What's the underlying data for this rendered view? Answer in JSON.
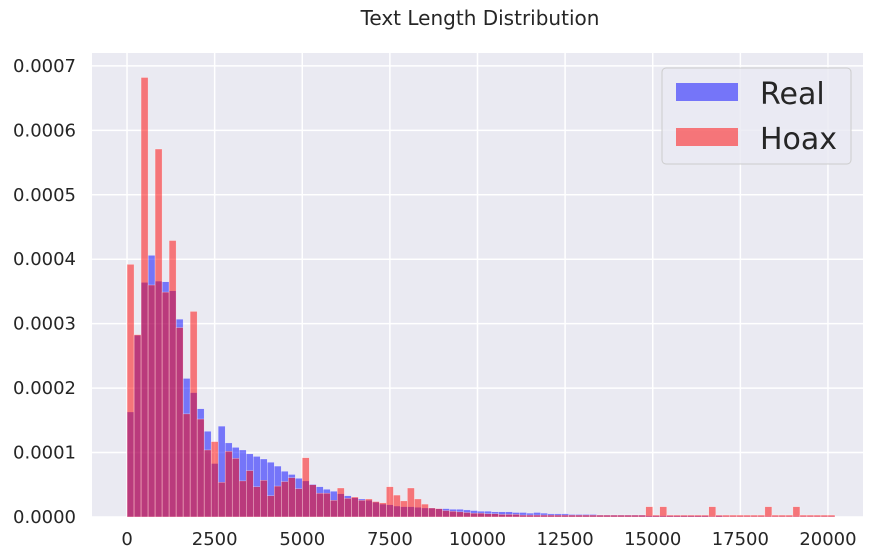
{
  "chart_data": {
    "type": "histogram",
    "title": "Text Length Distribution",
    "xlabel": "",
    "ylabel": "",
    "xlim": [
      -1000,
      21000
    ],
    "ylim": [
      0,
      0.00072
    ],
    "x_ticks": [
      0,
      2500,
      5000,
      7500,
      10000,
      12500,
      15000,
      17500,
      20000
    ],
    "x_tick_labels": [
      "0",
      "2500",
      "5000",
      "7500",
      "10000",
      "12500",
      "15000",
      "17500",
      "20000"
    ],
    "y_ticks": [
      0,
      0.0001,
      0.0002,
      0.0003,
      0.0004,
      0.0005,
      0.0006,
      0.0007
    ],
    "y_tick_labels": [
      "0.0000",
      "0.0001",
      "0.0002",
      "0.0003",
      "0.0004",
      "0.0005",
      "0.0006",
      "0.0007"
    ],
    "bin_edges_start": 0,
    "bin_width": 200,
    "grid": true,
    "legend_position": "top-right",
    "series": [
      {
        "name": "Real",
        "color": "#0000ff",
        "alpha": 0.5,
        "values": [
          0.000163,
          0.000282,
          0.000364,
          0.000406,
          0.000366,
          0.000365,
          0.000351,
          0.000307,
          0.000215,
          0.000193,
          0.000168,
          0.000133,
          8.3e-05,
          0.000141,
          0.000115,
          0.000108,
          0.000104,
          9.8e-05,
          9.4e-05,
          9e-05,
          8.5e-05,
          7.9e-05,
          7.1e-05,
          6.6e-05,
          6e-05,
          5.6e-05,
          5.1e-05,
          4.7e-05,
          4.3e-05,
          4e-05,
          3.6e-05,
          3.3e-05,
          3e-05,
          2.8e-05,
          2.6e-05,
          2.3e-05,
          2e-05,
          1.9e-05,
          1.7e-05,
          1.6e-05,
          1.6e-05,
          1.5e-05,
          1.4e-05,
          1.4e-05,
          1.3e-05,
          1.3e-05,
          1.2e-05,
          1.2e-05,
          1.1e-05,
          1e-05,
          9e-06,
          9e-06,
          8e-06,
          8e-06,
          8e-06,
          7e-06,
          7e-06,
          6e-06,
          7e-06,
          6e-06,
          5e-06,
          5e-06,
          5e-06,
          4e-06,
          4e-06,
          4e-06,
          4e-06,
          3e-06,
          3e-06,
          3e-06,
          3e-06,
          3e-06,
          3e-06,
          3e-06,
          2e-06,
          2e-06,
          2e-06,
          2e-06,
          2e-06,
          2e-06,
          2e-06,
          2e-06,
          2e-06,
          1e-06,
          2e-06,
          1e-06,
          1e-06,
          1e-06,
          1e-06,
          1e-06,
          1e-06,
          1e-06,
          1e-06,
          1e-06,
          1e-06,
          1e-06,
          1e-06,
          1e-06,
          1e-06,
          1e-06,
          1e-06
        ]
      },
      {
        "name": "Hoax",
        "color": "#ff0000",
        "alpha": 0.5,
        "values": [
          0.000392,
          0.000283,
          0.000682,
          0.00036,
          0.000571,
          0.000349,
          0.000429,
          0.000294,
          0.00016,
          0.000319,
          0.000152,
          0.000104,
          0.000117,
          5.4e-05,
          0.000102,
          9.1e-05,
          5.6e-05,
          7.2e-05,
          4.7e-05,
          5.7e-05,
          3.3e-05,
          4.8e-05,
          5.5e-05,
          6.1e-05,
          4.4e-05,
          9.2e-05,
          5e-05,
          3.7e-05,
          3.7e-05,
          2.6e-05,
          4.5e-05,
          2.9e-05,
          3.1e-05,
          2.6e-05,
          2.8e-05,
          2.4e-05,
          2.2e-05,
          4.7e-05,
          3.4e-05,
          2.5e-05,
          4.5e-05,
          2.8e-05,
          2e-05,
          1.4e-05,
          1.3e-05,
          1e-05,
          9e-06,
          8e-06,
          7e-06,
          6e-06,
          6e-06,
          5e-06,
          5e-06,
          4e-06,
          4e-06,
          4e-06,
          3e-06,
          3e-06,
          3e-06,
          3e-06,
          3e-06,
          3e-06,
          3e-06,
          3e-06,
          3e-06,
          3e-06,
          3e-06,
          3e-06,
          3e-06,
          3e-06,
          3e-06,
          3e-06,
          3e-06,
          3e-06,
          1.6e-05,
          3e-06,
          1.6e-05,
          3e-06,
          3e-06,
          3e-06,
          3e-06,
          3e-06,
          3e-06,
          1.6e-05,
          3e-06,
          3e-06,
          3e-06,
          3e-06,
          3e-06,
          3e-06,
          3e-06,
          1.6e-05,
          3e-06,
          3e-06,
          3e-06,
          1.6e-05,
          3e-06,
          3e-06,
          3e-06,
          3e-06,
          3e-06
        ]
      }
    ]
  }
}
